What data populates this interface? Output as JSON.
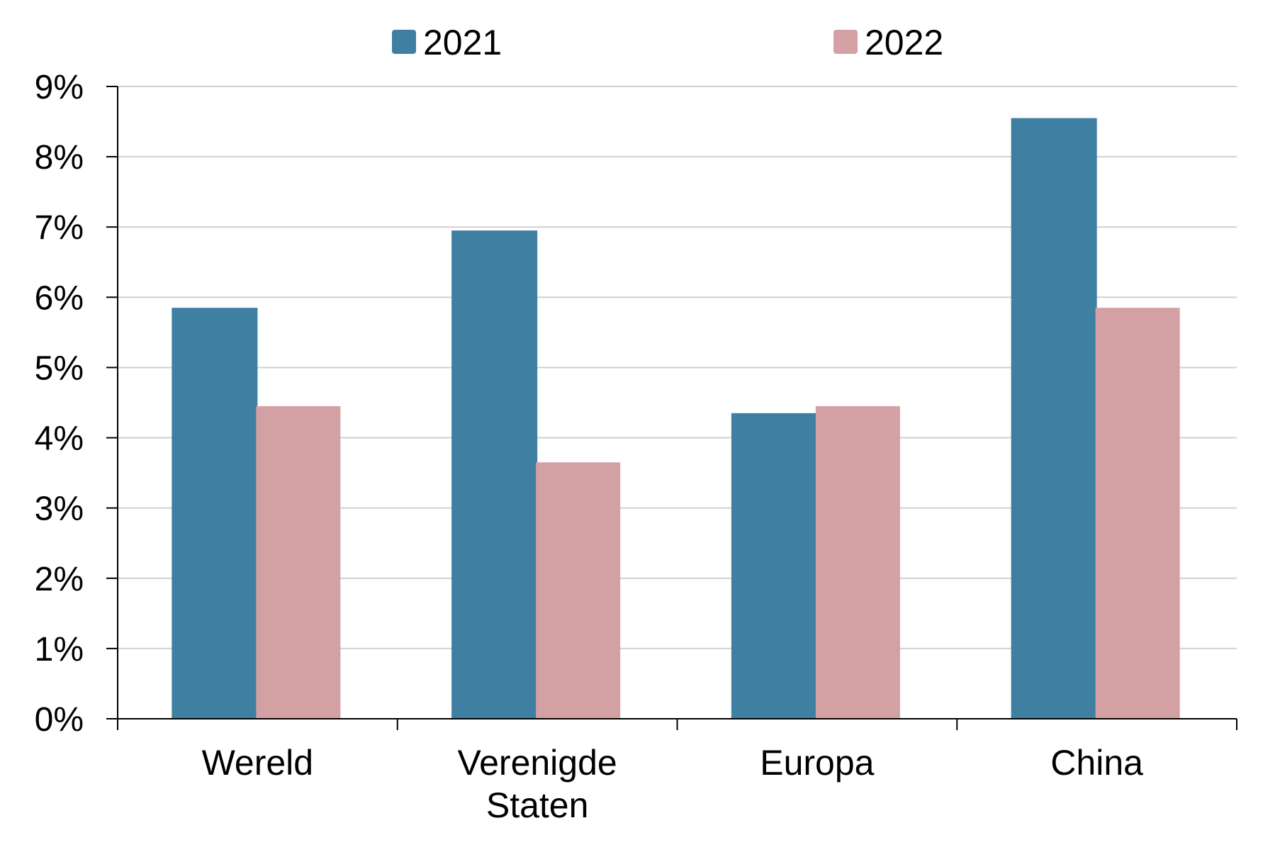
{
  "chart_data": {
    "type": "bar",
    "categories": [
      [
        "Wereld"
      ],
      [
        "Verenigde",
        "Staten"
      ],
      [
        "Europa"
      ],
      [
        "China"
      ]
    ],
    "series": [
      {
        "name": "2021",
        "color": "#3f7fa1",
        "values": [
          5.85,
          6.95,
          4.35,
          8.55
        ]
      },
      {
        "name": "2022",
        "color": "#d3a0a4",
        "values": [
          4.45,
          3.65,
          4.45,
          5.85
        ]
      }
    ],
    "ylim": [
      0,
      9
    ],
    "yticks": [
      "0%",
      "1%",
      "2%",
      "3%",
      "4%",
      "5%",
      "6%",
      "7%",
      "8%",
      "9%"
    ],
    "grid": true,
    "legend": "top-center"
  }
}
